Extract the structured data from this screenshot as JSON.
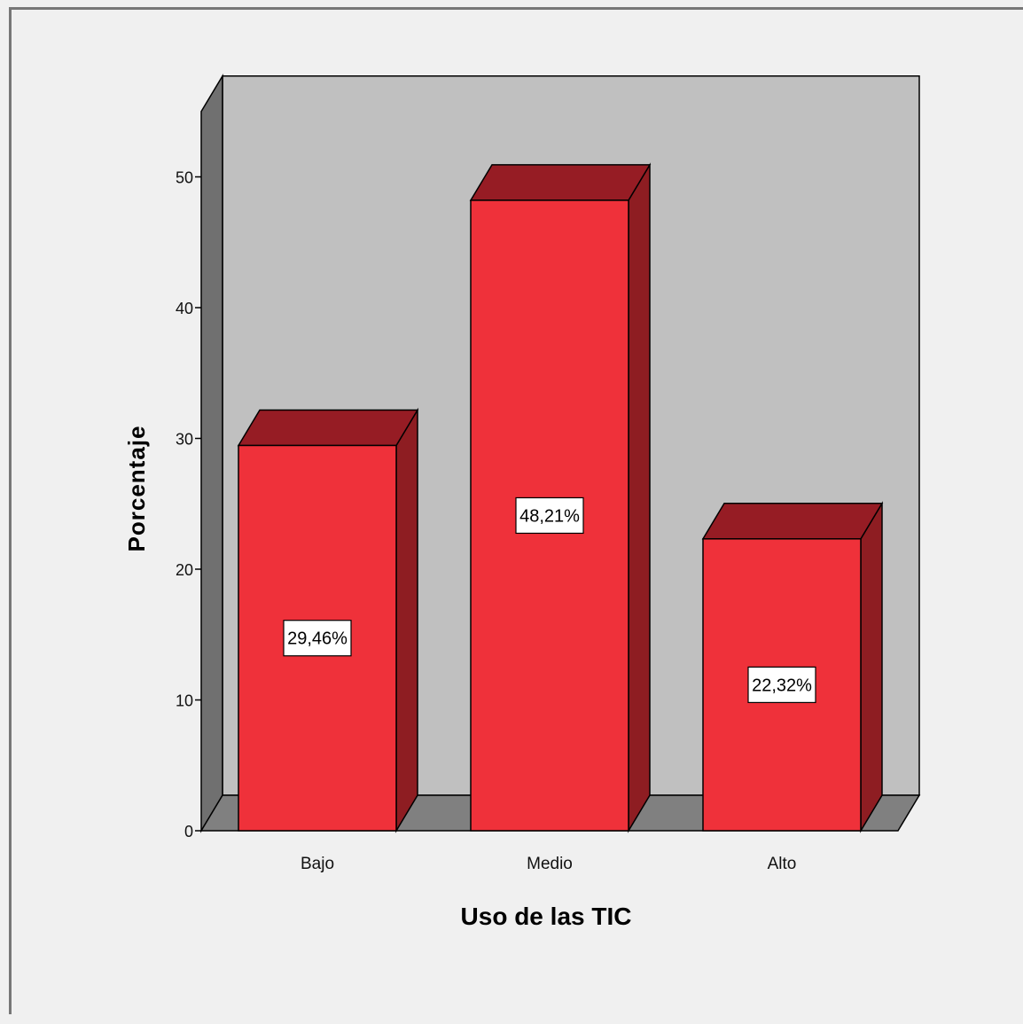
{
  "chart_data": {
    "type": "bar",
    "style": "3d",
    "categories": [
      "Bajo",
      "Medio",
      "Alto"
    ],
    "values": [
      29.46,
      48.21,
      22.32
    ],
    "data_labels": [
      "29,46%",
      "48,21%",
      "22,32%"
    ],
    "title": "",
    "xlabel": "Uso de las TIC",
    "ylabel": "Porcentaje",
    "ylim": [
      0,
      55
    ],
    "yticks": [
      0,
      10,
      20,
      30,
      40,
      50
    ],
    "ytick_labels": [
      "0",
      "10",
      "20",
      "30",
      "40",
      "50"
    ],
    "grid": false,
    "legend": "none",
    "colors": {
      "bar_front": "#ef313a",
      "bar_top": "#961c24",
      "bar_side": "#8e1d22",
      "back_wall": "#c0c0c0",
      "floor": "#808080",
      "left_wall": "#707070"
    }
  }
}
